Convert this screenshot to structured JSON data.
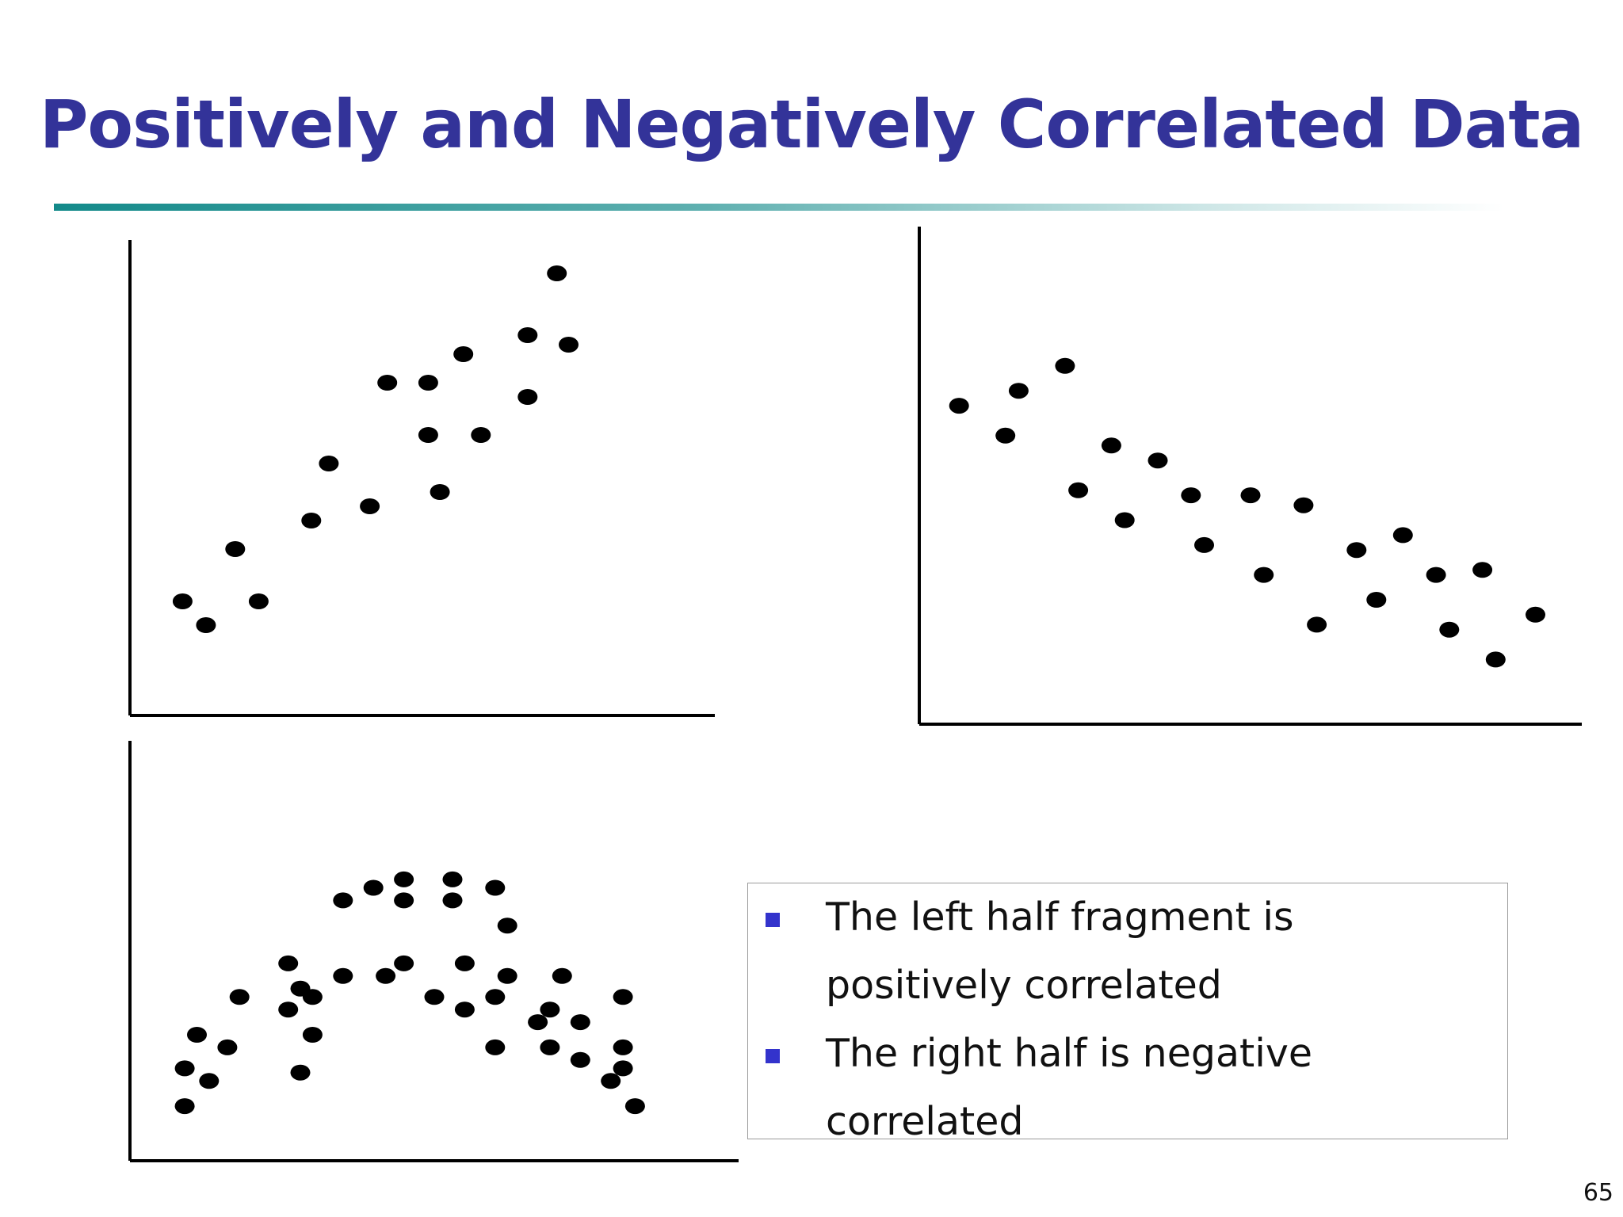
{
  "slide": {
    "title": "Positively and Negatively Correlated Data",
    "page_number": "65",
    "title_color": "#333399",
    "bullet_color": "#3333cc"
  },
  "notes": {
    "bullets": [
      "The left half fragment is positively correlated",
      "The right half is negative correlated"
    ]
  },
  "chart_data": [
    {
      "type": "scatter",
      "title": "",
      "xlabel": "",
      "ylabel": "",
      "grid": false,
      "ticks": false,
      "xlim": [
        0,
        100
      ],
      "ylim": [
        0,
        100
      ],
      "points": [
        [
          9,
          24
        ],
        [
          13,
          19
        ],
        [
          18,
          35
        ],
        [
          22,
          24
        ],
        [
          31,
          41
        ],
        [
          34,
          53
        ],
        [
          41,
          44
        ],
        [
          44,
          70
        ],
        [
          51,
          59
        ],
        [
          51,
          70
        ],
        [
          53,
          47
        ],
        [
          57,
          76
        ],
        [
          60,
          59
        ],
        [
          68,
          67
        ],
        [
          68,
          80
        ],
        [
          73,
          93
        ],
        [
          75,
          78
        ]
      ]
    },
    {
      "type": "scatter",
      "title": "",
      "xlabel": "",
      "ylabel": "",
      "grid": false,
      "ticks": false,
      "xlim": [
        0,
        100
      ],
      "ylim": [
        0,
        100
      ],
      "points": [
        [
          6,
          64
        ],
        [
          13,
          58
        ],
        [
          15,
          67
        ],
        [
          22,
          72
        ],
        [
          24,
          47
        ],
        [
          29,
          56
        ],
        [
          31,
          41
        ],
        [
          36,
          53
        ],
        [
          41,
          46
        ],
        [
          43,
          36
        ],
        [
          50,
          46
        ],
        [
          52,
          30
        ],
        [
          58,
          44
        ],
        [
          60,
          20
        ],
        [
          66,
          35
        ],
        [
          69,
          25
        ],
        [
          73,
          38
        ],
        [
          78,
          30
        ],
        [
          80,
          19
        ],
        [
          85,
          31
        ],
        [
          87,
          13
        ],
        [
          93,
          22
        ]
      ]
    },
    {
      "type": "scatter",
      "title": "",
      "xlabel": "",
      "ylabel": "",
      "grid": false,
      "ticks": false,
      "xlim": [
        0,
        100
      ],
      "ylim": [
        0,
        100
      ],
      "points": [
        [
          9,
          13
        ],
        [
          9,
          22
        ],
        [
          11,
          30
        ],
        [
          13,
          19
        ],
        [
          16,
          27
        ],
        [
          18,
          39
        ],
        [
          26,
          36
        ],
        [
          26,
          47
        ],
        [
          28,
          21
        ],
        [
          28,
          41
        ],
        [
          30,
          30
        ],
        [
          30,
          39
        ],
        [
          35,
          44
        ],
        [
          35,
          62
        ],
        [
          40,
          65
        ],
        [
          42,
          44
        ],
        [
          45,
          62
        ],
        [
          45,
          67
        ],
        [
          45,
          47
        ],
        [
          50,
          39
        ],
        [
          53,
          67
        ],
        [
          53,
          62
        ],
        [
          55,
          36
        ],
        [
          55,
          47
        ],
        [
          60,
          27
        ],
        [
          60,
          39
        ],
        [
          60,
          65
        ],
        [
          62,
          56
        ],
        [
          62,
          44
        ],
        [
          67,
          33
        ],
        [
          69,
          36
        ],
        [
          69,
          27
        ],
        [
          71,
          44
        ],
        [
          74,
          24
        ],
        [
          74,
          33
        ],
        [
          79,
          19
        ],
        [
          81,
          22
        ],
        [
          81,
          27
        ],
        [
          81,
          39
        ],
        [
          83,
          13
        ]
      ]
    }
  ]
}
